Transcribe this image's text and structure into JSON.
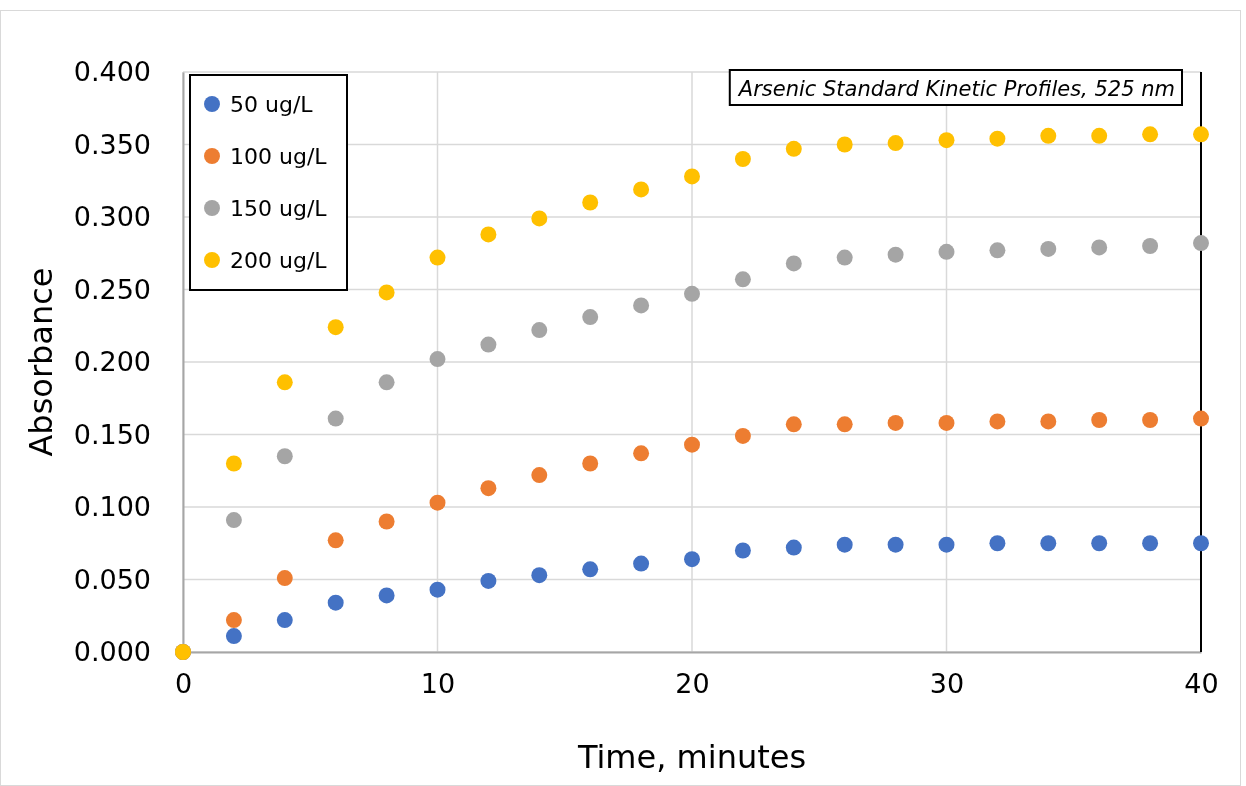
{
  "chart_data": {
    "type": "scatter",
    "title": "Arsenic Standard Kinetic Profiles, 525 nm",
    "xlabel": "Time, minutes",
    "ylabel": "Absorbance",
    "x": [
      0,
      2,
      4,
      6,
      8,
      10,
      12,
      14,
      16,
      18,
      20,
      22,
      24,
      26,
      28,
      30,
      32,
      34,
      36,
      38,
      40
    ],
    "series": [
      {
        "name": "50 ug/L",
        "color": "#4472c4",
        "values": [
          0,
          0.011,
          0.022,
          0.034,
          0.039,
          0.043,
          0.049,
          0.053,
          0.057,
          0.061,
          0.064,
          0.07,
          0.072,
          0.074,
          0.074,
          0.074,
          0.075,
          0.075,
          0.075,
          0.075,
          0.075
        ]
      },
      {
        "name": "100 ug/L",
        "color": "#ed7d31",
        "values": [
          0,
          0.022,
          0.051,
          0.077,
          0.09,
          0.103,
          0.113,
          0.122,
          0.13,
          0.137,
          0.143,
          0.149,
          0.157,
          0.157,
          0.158,
          0.158,
          0.159,
          0.159,
          0.16,
          0.16,
          0.161
        ]
      },
      {
        "name": "150 ug/L",
        "color": "#a5a5a5",
        "values": [
          0,
          0.091,
          0.135,
          0.161,
          0.186,
          0.202,
          0.212,
          0.222,
          0.231,
          0.239,
          0.247,
          0.257,
          0.268,
          0.272,
          0.274,
          0.276,
          0.277,
          0.278,
          0.279,
          0.28,
          0.282
        ]
      },
      {
        "name": "200 ug/L",
        "color": "#ffc000",
        "values": [
          0,
          0.13,
          0.186,
          0.224,
          0.248,
          0.272,
          0.288,
          0.299,
          0.31,
          0.319,
          0.328,
          0.34,
          0.347,
          0.35,
          0.351,
          0.353,
          0.354,
          0.356,
          0.356,
          0.357,
          0.357
        ]
      }
    ],
    "xlim": [
      0,
      40
    ],
    "xticks": [
      0,
      10,
      20,
      30,
      40
    ],
    "ylim": [
      0,
      0.4
    ],
    "yticks": [
      {
        "value": 0,
        "label": "0.000"
      },
      {
        "value": 0.05,
        "label": "0.050"
      },
      {
        "value": 0.1,
        "label": "0.100"
      },
      {
        "value": 0.15,
        "label": "0.150"
      },
      {
        "value": 0.2,
        "label": "0.200"
      },
      {
        "value": 0.25,
        "label": "0.250"
      },
      {
        "value": 0.3,
        "label": "0.300"
      },
      {
        "value": 0.35,
        "label": "0.350"
      },
      {
        "value": 0.4,
        "label": "0.400"
      }
    ],
    "grid": true,
    "legend": "top left",
    "marker": "circle"
  }
}
